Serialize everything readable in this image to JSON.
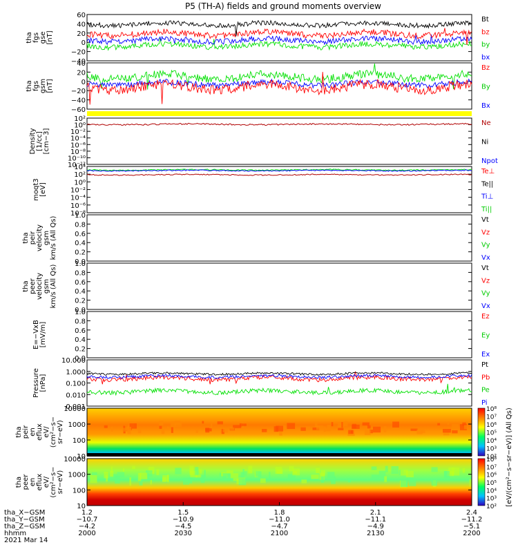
{
  "title": "P5 (TH-A) fields and ground moments overview",
  "colors": {
    "black": "#000000",
    "red": "#ff0000",
    "green": "#00e000",
    "blue": "#0000ff",
    "darkred": "#b00000",
    "teal": "#008888",
    "yellow": "#ffff00"
  },
  "panels": [
    {
      "id": "fgs-gse",
      "ylabel": [
        "tha",
        "fgs",
        "gse",
        "[nT]"
      ],
      "ticks": [
        "60",
        "40",
        "20",
        "0",
        "−20",
        "−40"
      ],
      "legend": [
        {
          "text": "Bt",
          "color": "#000000"
        },
        {
          "text": "bz",
          "color": "#ff0000"
        },
        {
          "text": "by",
          "color": "#00cc00"
        },
        {
          "text": "bx",
          "color": "#0000ff"
        }
      ]
    },
    {
      "id": "fgs-gsm",
      "ylabel": [
        "tha",
        "fgs",
        "gsm",
        "[nT]"
      ],
      "ticks": [
        "40",
        "20",
        "0",
        "−20",
        "−40",
        "−60"
      ],
      "legend": [
        {
          "text": "Bz",
          "color": "#ff0000"
        },
        {
          "text": "By",
          "color": "#00cc00"
        },
        {
          "text": "Bx",
          "color": "#0000ff"
        }
      ]
    },
    {
      "id": "density",
      "ylabel": [
        "Density",
        "[1/cc]",
        "[cm−3]"
      ],
      "ticks": [
        "10²",
        "10⁰",
        "10⁻²",
        "10⁻⁴",
        "10⁻⁶",
        "10⁻⁸",
        "10⁻¹⁰",
        "10⁻¹²"
      ],
      "legend": [
        {
          "text": "Ne",
          "color": "#b00000"
        },
        {
          "text": "Ni",
          "color": "#000000"
        },
        {
          "text": "Npot",
          "color": "#0000ff"
        }
      ]
    },
    {
      "id": "temperature",
      "ylabel": [
        "moqt3",
        "[eV]"
      ],
      "ticks": [
        "10⁴",
        "10²",
        "10⁰",
        "10⁻²",
        "10⁻⁴",
        "10⁻⁶",
        "10⁻⁸"
      ],
      "legend": [
        {
          "text": "Te⊥",
          "color": "#ff0000"
        },
        {
          "text": "Te||",
          "color": "#000000"
        },
        {
          "text": "Ti⊥",
          "color": "#0000ff"
        },
        {
          "text": "Ti||",
          "color": "#00cc00"
        }
      ]
    },
    {
      "id": "peir-velocity",
      "ylabel": [
        "tha",
        "peir",
        "velocity",
        "gsm",
        "km/s (All Qs)"
      ],
      "ticks": [
        "1.0",
        "0.8",
        "0.6",
        "0.4",
        "0.2",
        "0.0"
      ],
      "legend": [
        {
          "text": "Vt",
          "color": "#000000"
        },
        {
          "text": "Vz",
          "color": "#ff0000"
        },
        {
          "text": "Vy",
          "color": "#00cc00"
        },
        {
          "text": "Vx",
          "color": "#0000ff"
        }
      ]
    },
    {
      "id": "peer-velocity",
      "ylabel": [
        "tha",
        "peer",
        "velocity",
        "gsm",
        "km/s (All Qs)"
      ],
      "ticks": [
        "1.0",
        "0.8",
        "0.6",
        "0.4",
        "0.2",
        "0.0"
      ],
      "legend": [
        {
          "text": "Vt",
          "color": "#000000"
        },
        {
          "text": "Vz",
          "color": "#ff0000"
        },
        {
          "text": "Vy",
          "color": "#00cc00"
        },
        {
          "text": "Vx",
          "color": "#0000ff"
        }
      ]
    },
    {
      "id": "efield",
      "ylabel": [
        "E=−VxB",
        "[mV/m]"
      ],
      "ticks": [
        "1.0",
        "0.8",
        "0.6",
        "0.4",
        "0.2",
        "0.0"
      ],
      "legend": [
        {
          "text": "Ez",
          "color": "#ff0000"
        },
        {
          "text": "Ey",
          "color": "#00cc00"
        },
        {
          "text": "Ex",
          "color": "#0000ff"
        }
      ]
    },
    {
      "id": "pressure",
      "ylabel": [
        "Pressure",
        "[nPa]"
      ],
      "ticks": [
        "10.000",
        "1.000",
        "0.100",
        "0.010",
        "0.001"
      ],
      "legend": [
        {
          "text": "Pt",
          "color": "#000000"
        },
        {
          "text": "Pb",
          "color": "#ff0000"
        },
        {
          "text": "Pe",
          "color": "#00cc00"
        },
        {
          "text": "Pi",
          "color": "#0000ff"
        }
      ]
    },
    {
      "id": "peir-eflux",
      "ylabel": [
        "tha",
        "peir",
        "en",
        "eflux",
        "eV/",
        "(cm²−s−",
        "sr−eV)"
      ],
      "ticks": [
        "10000",
        "1000",
        "100",
        "10"
      ]
    },
    {
      "id": "peer-eflux",
      "ylabel": [
        "tha",
        "peer",
        "en",
        "eflux",
        "eV/",
        "(cm²−s−",
        "sr−eV)"
      ],
      "ticks": [
        "10000",
        "1000",
        "100",
        "10"
      ]
    }
  ],
  "colorbar": {
    "ticks1": [
      "10⁸",
      "10⁷",
      "10⁶",
      "10⁵",
      "10⁴",
      "10³",
      "10²"
    ],
    "ticks2": [
      "10⁸",
      "10⁷",
      "10⁶",
      "10⁵",
      "10⁴",
      "10³",
      "10²"
    ],
    "label": "[eV/(cm²−s−sr−eV)] (All Qs)"
  },
  "xaxis": {
    "rows": [
      {
        "label": "tha_X−GSM",
        "values": [
          "1.2",
          "1.5",
          "1.8",
          "2.1",
          "2.4"
        ]
      },
      {
        "label": "tha_Y−GSM",
        "values": [
          "−10.7",
          "−10.9",
          "−11.0",
          "−11.1",
          "−11.2"
        ]
      },
      {
        "label": "tha_Z−GSM",
        "values": [
          "−4.2",
          "−4.5",
          "−4.7",
          "−4.9",
          "−5.1"
        ]
      },
      {
        "label": "hhmm",
        "values": [
          "2000",
          "2030",
          "2100",
          "2130",
          "2200"
        ]
      }
    ],
    "date": "2021 Mar 14"
  },
  "chart_data": [
    {
      "type": "line",
      "x": [
        "2000",
        "2030",
        "2100",
        "2130",
        "2200"
      ],
      "ylabel": "tha fgs gse [nT]",
      "ylim": [
        -40,
        60
      ],
      "series": [
        {
          "name": "Bt",
          "values": [
            35,
            30,
            38,
            35,
            33
          ]
        },
        {
          "name": "bz",
          "values": [
            8,
            10,
            12,
            12,
            14
          ]
        },
        {
          "name": "by",
          "values": [
            -25,
            -22,
            -24,
            -22,
            -24
          ]
        },
        {
          "name": "bx",
          "values": [
            -15,
            -12,
            -8,
            -10,
            -12
          ]
        }
      ]
    },
    {
      "type": "line",
      "x": [
        "2000",
        "2030",
        "2100",
        "2130",
        "2200"
      ],
      "ylabel": "tha fgs gsm [nT]",
      "ylim": [
        -60,
        40
      ],
      "series": [
        {
          "name": "Bz",
          "values": [
            -10,
            -20,
            -25,
            -18,
            -12
          ]
        },
        {
          "name": "By",
          "values": [
            -5,
            10,
            18,
            10,
            5
          ]
        },
        {
          "name": "Bx",
          "values": [
            -8,
            -5,
            -5,
            -2,
            -8
          ]
        }
      ]
    },
    {
      "type": "line",
      "x": [
        "2000",
        "2030",
        "2100",
        "2130",
        "2200"
      ],
      "ylabel": "Density [1/cc] [cm-3]",
      "ylim": [
        1e-12,
        100
      ],
      "series": [
        {
          "name": "Ne",
          "values": [
            0.8,
            1.0,
            1.2,
            1.0,
            0.9
          ]
        }
      ]
    },
    {
      "type": "line",
      "x": [
        "2000",
        "2030",
        "2100",
        "2130",
        "2200"
      ],
      "ylabel": "moqt3 [eV]",
      "ylim": [
        1e-08,
        10000
      ],
      "series": [
        {
          "name": "Te⊥",
          "values": [
            400,
            420,
            420,
            410,
            400
          ]
        },
        {
          "name": "Ti⊥",
          "values": [
            3000,
            3200,
            3000,
            3100,
            3000
          ]
        },
        {
          "name": "Ti||",
          "values": [
            2500,
            2600,
            2500,
            2600,
            2500
          ]
        }
      ]
    },
    {
      "type": "line",
      "x": [
        "2000",
        "2030",
        "2100",
        "2130",
        "2200"
      ],
      "ylabel": "Pressure [nPa]",
      "ylim": [
        0.001,
        10
      ],
      "series": [
        {
          "name": "Pt",
          "values": [
            0.8,
            1.0,
            1.1,
            0.9,
            0.9
          ]
        },
        {
          "name": "Pb",
          "values": [
            0.5,
            0.4,
            0.3,
            0.4,
            0.5
          ]
        },
        {
          "name": "Pe",
          "values": [
            0.05,
            0.04,
            0.05,
            0.06,
            0.06
          ]
        },
        {
          "name": "Pi",
          "values": [
            0.6,
            0.7,
            0.8,
            0.7,
            0.6
          ]
        }
      ]
    },
    {
      "type": "heatmap",
      "ylabel": "tha peir en eflux",
      "ylim": [
        5,
        20000
      ]
    },
    {
      "type": "heatmap",
      "ylabel": "tha peer en eflux",
      "ylim": [
        5,
        20000
      ]
    }
  ]
}
